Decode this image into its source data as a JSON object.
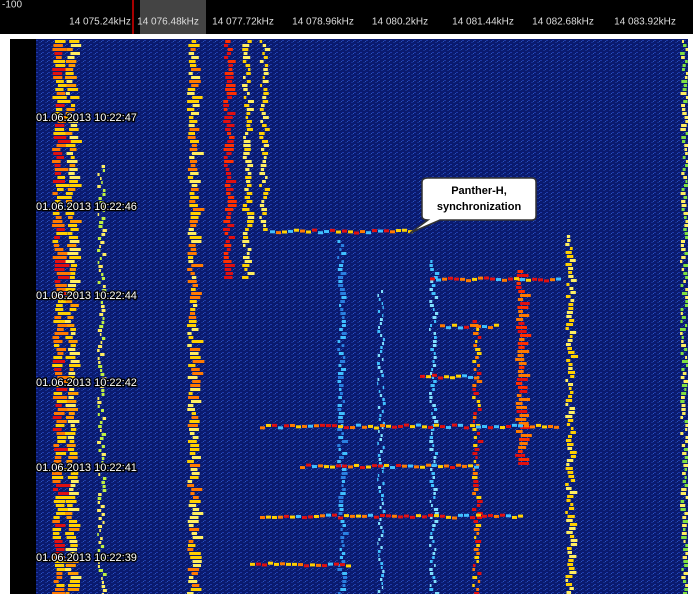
{
  "header": {
    "scale_label": "-100",
    "frequencies": [
      "14 075.24kHz",
      "14 076.48kHz",
      "14 077.72kHz",
      "14 078.96kHz",
      "14 080.2kHz",
      "14 081.44kHz",
      "14 082.68kHz",
      "14 083.92kHz"
    ]
  },
  "timestamps": [
    "01.06.2013 10:22:47",
    "01.06.2013 10:22:46",
    "01.06.2013 10:22:44",
    "01.06.2013 10:22:42",
    "01.06.2013 10:22:41",
    "01.06.2013 10:22:39"
  ],
  "callout": {
    "line1": "Panther-H,",
    "line2": "synchronization"
  }
}
